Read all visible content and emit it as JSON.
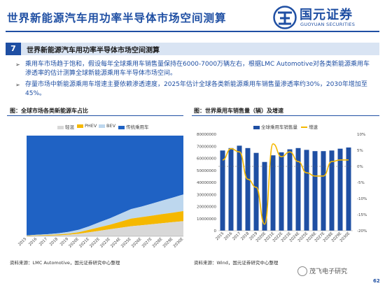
{
  "header": {
    "title": "世界新能源汽车用功率半导体市场空间测算",
    "logo_name": "国元证券",
    "logo_sub": "GUOYUAN SECURITIES"
  },
  "section": {
    "number": "7",
    "title": "世界新能源汽车用功率半导体市场空间测算"
  },
  "bullets": [
    "乘用车市场趋于饱和，假设每年全球乘用车销售量保持在6000-7000万辆左右，根据LMC Automotive对各类新能源乘用车渗透率的估计测算全球新能源乘用车半导体市场空间。",
    "存量市场中新能源乘用车增速主要依赖渗透速度，2025年估计全球各类新能源乘用车销售量渗透率约30%，2030年增加至45%。"
  ],
  "left_chart": {
    "title": "图：全球市场各类新能源车占比",
    "source": "资料来源：LMC Automotive，国元证券研究中心整理"
  },
  "right_chart": {
    "title": "图：世界乘用车销售量（辆）及增速",
    "source": "资料来源：Wind，国元证券研究中心整理"
  },
  "footer": {
    "watermark": "茂飞电子研究",
    "page": "62"
  },
  "chart_data": [
    {
      "type": "area",
      "title": "图：全球市场各类新能源车占比",
      "categories": [
        "2015",
        "2016",
        "2017",
        "2018",
        "2019",
        "2020E",
        "2021E",
        "2022E",
        "2023E",
        "2024E",
        "2025E",
        "2026E",
        "2027E",
        "2028E",
        "2029E",
        "2030E"
      ],
      "series": [
        {
          "name": "轻混",
          "color": "#d8d8d8",
          "values": [
            0.3,
            0.5,
            0.7,
            1.0,
            1.5,
            2.5,
            4.0,
            5.5,
            7.0,
            8.5,
            10.0,
            11.0,
            12.0,
            13.0,
            14.0,
            15.0
          ]
        },
        {
          "name": "PHEV",
          "color": "#f5b800",
          "values": [
            0.3,
            0.5,
            0.6,
            0.8,
            1.0,
            1.5,
            2.5,
            3.5,
            4.5,
            6.0,
            7.5,
            8.0,
            8.5,
            9.0,
            9.5,
            10.0
          ]
        },
        {
          "name": "BEV",
          "color": "#bdd7ee",
          "values": [
            0.3,
            0.5,
            0.8,
            1.2,
            1.8,
            2.5,
            3.5,
            5.0,
            6.5,
            8.0,
            9.5,
            10.5,
            12.0,
            13.5,
            15.0,
            16.5
          ]
        },
        {
          "name": "传统乘用车",
          "color": "#1f62c4",
          "values": [
            99.1,
            98.5,
            97.9,
            97.0,
            95.7,
            93.5,
            90.0,
            86.0,
            82.0,
            77.5,
            73.0,
            70.5,
            67.5,
            64.5,
            61.5,
            58.5
          ]
        }
      ],
      "ylim": [
        0,
        100
      ]
    },
    {
      "type": "bar",
      "title": "图：世界乘用车销售量（辆）及增速",
      "categories": [
        "2015",
        "2016",
        "2017",
        "2018",
        "2019",
        "2020E",
        "2021E",
        "2022E",
        "2023E",
        "2024E",
        "2025E",
        "2026E",
        "2027E",
        "2028E",
        "2029E",
        "2030E"
      ],
      "yticks_left": [
        "0",
        "10000000",
        "20000000",
        "30000000",
        "40000000",
        "50000000",
        "60000000",
        "70000000",
        "80000000"
      ],
      "yticks_right": [
        "-20%",
        "-15%",
        "-10%",
        "-5%",
        "0%",
        "5%",
        "10%"
      ],
      "series": [
        {
          "name": "全球乘用车销售量",
          "type": "bar",
          "color": "#1f4fa3",
          "values": [
            66500000,
            68500000,
            70500000,
            68500000,
            64500000,
            57000000,
            62500000,
            65000000,
            67500000,
            68500000,
            67000000,
            66000000,
            66000000,
            66500000,
            68000000,
            69000000
          ]
        },
        {
          "name": "增速",
          "type": "line",
          "color": "#f5b800",
          "values": [
            2.0,
            5.5,
            4.5,
            -4.0,
            -6.5,
            -18.0,
            7.0,
            3.0,
            4.5,
            1.5,
            -2.0,
            -3.0,
            -3.0,
            1.5,
            2.0,
            2.0
          ]
        }
      ],
      "ylim_left": [
        0,
        80000000
      ],
      "ylim_right": [
        -20,
        10
      ]
    }
  ]
}
